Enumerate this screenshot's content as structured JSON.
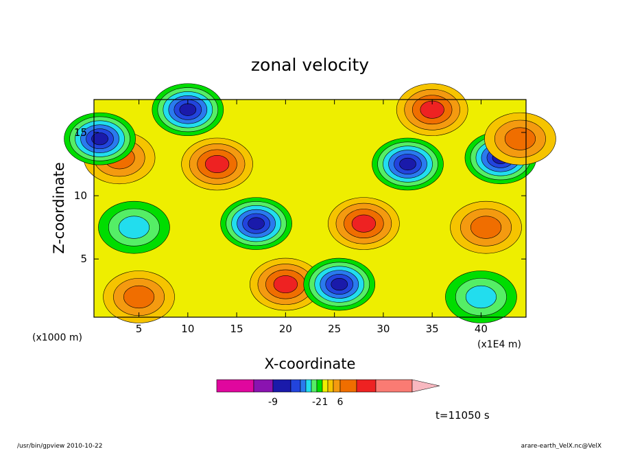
{
  "chart_data": {
    "type": "heatmap",
    "title": "zonal velocity",
    "xlabel": "X-coordinate",
    "ylabel": "Z-coordinate",
    "x_scale_label": "(x1000 m)",
    "x_unit_label": "(x1E4 m)",
    "xlim": [
      0.4,
      44.6
    ],
    "ylim": [
      0.4,
      17.6
    ],
    "x_ticks": [
      5,
      10,
      15,
      20,
      25,
      30,
      35,
      40
    ],
    "y_ticks": [
      5,
      10,
      15
    ],
    "colorbar": {
      "colors": [
        "#e0079e",
        "#8a13b0",
        "#1a1aaa",
        "#2244dd",
        "#2a7aee",
        "#22ddee",
        "#55ee66",
        "#00dd00",
        "#eeee00",
        "#f6c400",
        "#f49a10",
        "#f06e00",
        "#ee2222",
        "#fa7b73"
      ],
      "extend_color": "#f8b8c0",
      "tick_labels": [
        {
          "label": "-9",
          "index": 2
        },
        {
          "label": "-2",
          "index": 7
        },
        {
          "label": "1",
          "index": 8.5
        },
        {
          "label": "6",
          "index": 11
        }
      ]
    },
    "features": [
      {
        "x": 13,
        "z": 12.5,
        "level": 11
      },
      {
        "x": 32.5,
        "z": 12.5,
        "level": 2
      },
      {
        "x": 17,
        "z": 7.8,
        "level": 2
      },
      {
        "x": 28,
        "z": 7.8,
        "level": 11
      },
      {
        "x": 20,
        "z": 3,
        "level": 11
      },
      {
        "x": 25.5,
        "z": 3,
        "level": 2
      },
      {
        "x": 3,
        "z": 13,
        "level": 10
      },
      {
        "x": 42,
        "z": 13,
        "level": 2
      },
      {
        "x": 1,
        "z": 14.5,
        "level": 2
      },
      {
        "x": 44,
        "z": 14.5,
        "level": 10
      },
      {
        "x": 4.5,
        "z": 7.5,
        "level": 5
      },
      {
        "x": 40.5,
        "z": 7.5,
        "level": 10
      },
      {
        "x": 10,
        "z": 16.8,
        "level": 2
      },
      {
        "x": 35,
        "z": 16.8,
        "level": 11
      },
      {
        "x": 5,
        "z": 2,
        "level": 10
      },
      {
        "x": 40,
        "z": 2,
        "level": 5
      }
    ]
  },
  "time_label": "t=11050 s",
  "footer_left": "/usr/bin/gpview   2010-10-22",
  "footer_right": "arare-earth_VelX.nc@VelX"
}
